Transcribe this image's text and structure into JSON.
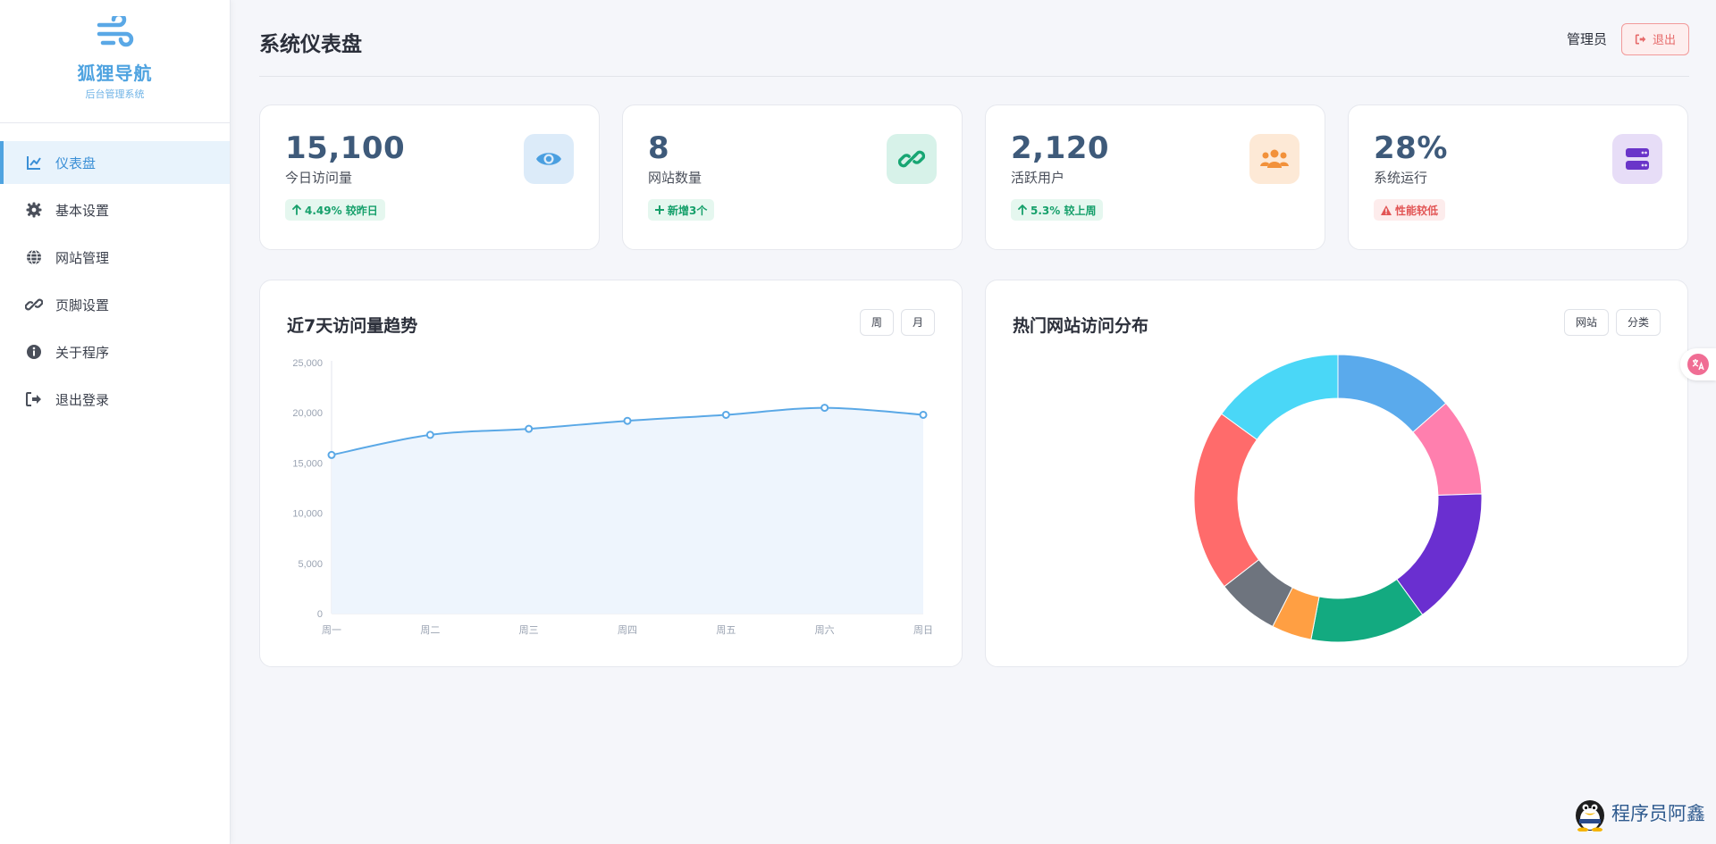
{
  "brand": {
    "title": "狐狸导航",
    "subtitle": "后台管理系统",
    "logo_icon": "wind-icon"
  },
  "sidebar": {
    "items": [
      {
        "label": "仪表盘",
        "icon": "chart-line-icon",
        "active": true
      },
      {
        "label": "基本设置",
        "icon": "gear-icon",
        "active": false
      },
      {
        "label": "网站管理",
        "icon": "globe-icon",
        "active": false
      },
      {
        "label": "页脚设置",
        "icon": "link-icon",
        "active": false
      },
      {
        "label": "关于程序",
        "icon": "info-icon",
        "active": false
      },
      {
        "label": "退出登录",
        "icon": "sign-out-icon",
        "active": false
      }
    ]
  },
  "header": {
    "title": "系统仪表盘",
    "user": "管理员",
    "logout_label": "退出"
  },
  "stats": [
    {
      "value": "15,100",
      "label": "今日访问量",
      "badge": "4.49% 较昨日",
      "badge_type": "up",
      "icon": "eye-icon",
      "icon_bg": "#dcebf9",
      "icon_color": "#4a9fe0"
    },
    {
      "value": "8",
      "label": "网站数量",
      "badge": "新增3个",
      "badge_type": "plus",
      "icon": "link-icon",
      "icon_bg": "#d7f2e9",
      "icon_color": "#17a673"
    },
    {
      "value": "2,120",
      "label": "活跃用户",
      "badge": "5.3% 较上周",
      "badge_type": "up",
      "icon": "users-icon",
      "icon_bg": "#fde9d6",
      "icon_color": "#f2913a"
    },
    {
      "value": "28%",
      "label": "系统运行",
      "badge": "性能较低",
      "badge_type": "warn",
      "icon": "server-icon",
      "icon_bg": "#e7ddf7",
      "icon_color": "#6a35c9"
    }
  ],
  "line_chart": {
    "title": "近7天访问量趋势",
    "buttons": [
      "周",
      "月"
    ]
  },
  "donut_chart": {
    "title": "热门网站访问分布",
    "buttons": [
      "网站",
      "分类"
    ]
  },
  "chart_data": [
    {
      "type": "line",
      "title": "近7天访问量趋势",
      "categories": [
        "周一",
        "周二",
        "周三",
        "周四",
        "周五",
        "周六",
        "周日"
      ],
      "series": [
        {
          "values": [
            15800,
            17800,
            18400,
            19200,
            19800,
            20500,
            19800
          ]
        }
      ],
      "y_ticks": [
        "0",
        "5,000",
        "10,000",
        "15,000",
        "20,000",
        "25,000"
      ],
      "ylim": [
        0,
        25000
      ],
      "color": "#5aa8e6",
      "fill": "#eef5fd"
    },
    {
      "type": "pie",
      "title": "热门网站访问分布",
      "values": [
        13.5,
        11,
        15.5,
        13,
        4.5,
        7,
        20.5,
        15
      ],
      "colors": [
        "#5aaaec",
        "#ff7fae",
        "#6a2fd0",
        "#13aa80",
        "#ff9f43",
        "#6e747e",
        "#ff6b6b",
        "#4ad7f7"
      ],
      "donut": true
    }
  ],
  "watermark": {
    "text": "程序员阿鑫"
  }
}
